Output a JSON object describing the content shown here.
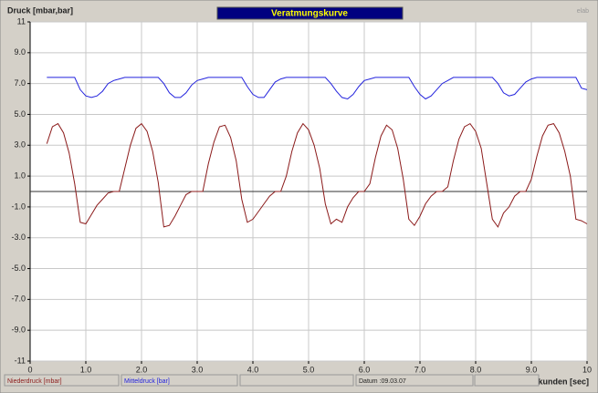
{
  "chart_data": {
    "type": "line",
    "title": "Veratmungskurve",
    "y_label": "Druck [mbar,bar]",
    "x_label": "Sekunden [sec]",
    "brand": "elab",
    "date_label": "Datum :09.03.07",
    "xlim": [
      0,
      10
    ],
    "ylim": [
      -11,
      11
    ],
    "xticks": [
      0,
      {
        "value": 1,
        "label": "1.0"
      },
      {
        "value": 2,
        "label": "2.0"
      },
      {
        "value": 3,
        "label": "3.0"
      },
      {
        "value": 4,
        "label": "4.0"
      },
      {
        "value": 5,
        "label": "5.0"
      },
      {
        "value": 6,
        "label": "6.0"
      },
      {
        "value": 7,
        "label": "7.0"
      },
      {
        "value": 8,
        "label": "8.0"
      },
      {
        "value": 9,
        "label": "9.0"
      },
      10
    ],
    "yticks": [
      -11,
      {
        "value": -9,
        "label": "-9.0"
      },
      {
        "value": -7,
        "label": "-7.0"
      },
      {
        "value": -5,
        "label": "-5.0"
      },
      {
        "value": -3,
        "label": "-3.0"
      },
      {
        "value": -1,
        "label": "-1.0"
      },
      {
        "value": 1,
        "label": "1.0"
      },
      {
        "value": 3,
        "label": "3.0"
      },
      {
        "value": 5,
        "label": "5.0"
      },
      {
        "value": 7,
        "label": "7.0"
      },
      {
        "value": 9,
        "label": "9.0"
      },
      11
    ],
    "grid": true,
    "hline": 0,
    "x": [
      0.3,
      0.4,
      0.5,
      0.6,
      0.7,
      0.8,
      0.9,
      1.0,
      1.1,
      1.2,
      1.3,
      1.4,
      1.5,
      1.6,
      1.7,
      1.8,
      1.9,
      2.0,
      2.1,
      2.2,
      2.3,
      2.4,
      2.5,
      2.6,
      2.7,
      2.8,
      2.9,
      3.0,
      3.1,
      3.2,
      3.3,
      3.4,
      3.5,
      3.6,
      3.7,
      3.8,
      3.9,
      4.0,
      4.1,
      4.2,
      4.3,
      4.4,
      4.5,
      4.6,
      4.7,
      4.8,
      4.9,
      5.0,
      5.1,
      5.2,
      5.3,
      5.4,
      5.5,
      5.6,
      5.7,
      5.8,
      5.9,
      6.0,
      6.1,
      6.2,
      6.3,
      6.4,
      6.5,
      6.6,
      6.7,
      6.8,
      6.9,
      7.0,
      7.1,
      7.2,
      7.3,
      7.4,
      7.5,
      7.6,
      7.7,
      7.8,
      7.9,
      8.0,
      8.1,
      8.2,
      8.3,
      8.4,
      8.5,
      8.6,
      8.7,
      8.8,
      8.9,
      9.0,
      9.1,
      9.2,
      9.3,
      9.4,
      9.5,
      9.6,
      9.7,
      9.8,
      9.9,
      10
    ],
    "series": [
      {
        "name": "Niederdruck [mbar]",
        "color": "#8b1a1a",
        "values": [
          3.1,
          4.2,
          4.4,
          3.8,
          2.5,
          0.5,
          -2.0,
          -2.1,
          -1.5,
          -0.9,
          -0.5,
          -0.1,
          0.0,
          0.0,
          1.5,
          3.0,
          4.1,
          4.4,
          3.9,
          2.6,
          0.6,
          -2.3,
          -2.2,
          -1.6,
          -0.9,
          -0.2,
          0.0,
          0.0,
          0.0,
          1.8,
          3.2,
          4.2,
          4.3,
          3.5,
          2.0,
          -0.5,
          -2.0,
          -1.8,
          -1.3,
          -0.8,
          -0.3,
          0.0,
          0.0,
          1.0,
          2.6,
          3.8,
          4.4,
          4.0,
          3.0,
          1.5,
          -0.8,
          -2.1,
          -1.8,
          -2.0,
          -1.0,
          -0.4,
          0.0,
          0.0,
          0.5,
          2.2,
          3.6,
          4.3,
          4.0,
          2.8,
          0.8,
          -1.8,
          -2.2,
          -1.6,
          -0.8,
          -0.3,
          0.0,
          0.0,
          0.3,
          2.0,
          3.4,
          4.2,
          4.4,
          3.9,
          2.8,
          0.5,
          -1.8,
          -2.3,
          -1.4,
          -1.0,
          -0.3,
          0.0,
          0.0,
          0.8,
          2.3,
          3.6,
          4.3,
          4.4,
          3.8,
          2.6,
          1.0,
          -1.8,
          -1.9,
          -2.1
        ]
      },
      {
        "name": "Mitteldruck [bar]",
        "color": "#2222dd",
        "values": [
          7.4,
          7.4,
          7.4,
          7.4,
          7.4,
          7.4,
          6.6,
          6.2,
          6.1,
          6.2,
          6.5,
          7.0,
          7.2,
          7.3,
          7.4,
          7.4,
          7.4,
          7.4,
          7.4,
          7.4,
          7.4,
          7.0,
          6.4,
          6.1,
          6.1,
          6.4,
          6.9,
          7.2,
          7.3,
          7.4,
          7.4,
          7.4,
          7.4,
          7.4,
          7.4,
          7.4,
          6.8,
          6.3,
          6.1,
          6.1,
          6.6,
          7.1,
          7.3,
          7.4,
          7.4,
          7.4,
          7.4,
          7.4,
          7.4,
          7.4,
          7.4,
          7.0,
          6.5,
          6.1,
          6.0,
          6.3,
          6.8,
          7.2,
          7.3,
          7.4,
          7.4,
          7.4,
          7.4,
          7.4,
          7.4,
          7.4,
          6.8,
          6.3,
          6.0,
          6.2,
          6.6,
          7.0,
          7.2,
          7.4,
          7.4,
          7.4,
          7.4,
          7.4,
          7.4,
          7.4,
          7.4,
          7.0,
          6.4,
          6.2,
          6.3,
          6.7,
          7.1,
          7.3,
          7.4,
          7.4,
          7.4,
          7.4,
          7.4,
          7.4,
          7.4,
          7.4,
          6.7,
          6.6
        ]
      }
    ]
  }
}
